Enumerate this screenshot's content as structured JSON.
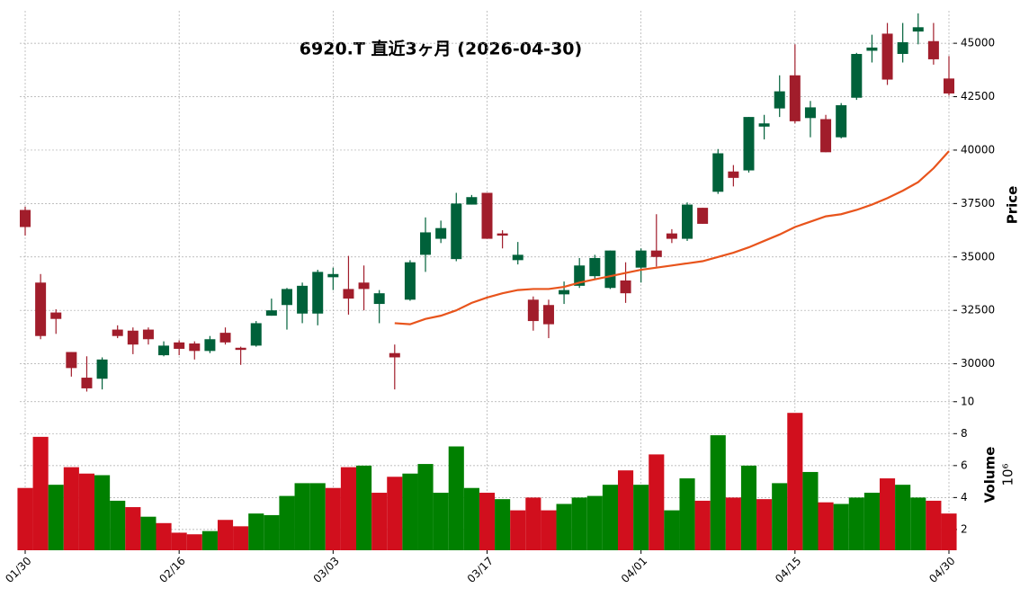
{
  "chart_data": {
    "type": "candlestick",
    "title": "6920.T 直近3ヶ月 (2026-04-30)",
    "categories": [
      "01/30",
      null,
      null,
      null,
      null,
      null,
      null,
      null,
      null,
      null,
      "02/16",
      null,
      null,
      null,
      null,
      null,
      null,
      null,
      null,
      null,
      "03/03",
      null,
      null,
      null,
      null,
      null,
      null,
      null,
      null,
      null,
      "03/17",
      null,
      null,
      null,
      null,
      null,
      null,
      null,
      null,
      null,
      "04/01",
      null,
      null,
      null,
      null,
      null,
      null,
      null,
      null,
      null,
      "04/15",
      null,
      null,
      null,
      null,
      null,
      null,
      null,
      null,
      null,
      "04/30"
    ],
    "open": [
      37200,
      33800,
      32400,
      30550,
      29350,
      29300,
      31600,
      31550,
      31600,
      30400,
      31000,
      30950,
      30600,
      31450,
      30750,
      30850,
      32250,
      32750,
      32350,
      32350,
      34050,
      33500,
      33800,
      32800,
      30500,
      33000,
      35100,
      35850,
      34900,
      37450,
      38000,
      36100,
      34850,
      33000,
      32750,
      33250,
      33650,
      34100,
      33550,
      33900,
      34500,
      35300,
      36100,
      35850,
      37300,
      38050,
      39000,
      39050,
      41100,
      41950,
      43500,
      41500,
      41450,
      40600,
      42450,
      44650,
      45450,
      44500,
      45550,
      45100,
      43350
    ],
    "high": [
      37350,
      34200,
      32550,
      30550,
      30350,
      30300,
      31800,
      31700,
      31700,
      31050,
      31100,
      31050,
      31300,
      31700,
      30800,
      32000,
      33050,
      33550,
      33800,
      34400,
      34500,
      35050,
      34600,
      33450,
      30900,
      34850,
      36850,
      36700,
      38000,
      37900,
      38000,
      36250,
      35700,
      33150,
      33000,
      33850,
      34950,
      35100,
      35300,
      34750,
      35400,
      37000,
      36300,
      37550,
      37300,
      40050,
      39300,
      41550,
      41650,
      43500,
      44950,
      42300,
      41650,
      42200,
      44550,
      45400,
      45950,
      45950,
      46400,
      45950,
      44400
    ],
    "low": [
      36000,
      31150,
      31400,
      29400,
      28700,
      28800,
      31200,
      30450,
      30900,
      30350,
      30400,
      30200,
      30500,
      30900,
      29950,
      30800,
      32250,
      31600,
      31900,
      31800,
      33450,
      32300,
      32500,
      31900,
      28800,
      32950,
      34300,
      35650,
      34800,
      37450,
      35850,
      35400,
      34650,
      31550,
      31200,
      32800,
      33550,
      33950,
      33500,
      32850,
      33800,
      34550,
      35650,
      35750,
      36550,
      37950,
      38300,
      38950,
      40500,
      41550,
      41250,
      40600,
      39900,
      40550,
      42350,
      44100,
      43050,
      44100,
      44950,
      44000,
      42550
    ],
    "close": [
      36400,
      31300,
      32100,
      29800,
      28850,
      30200,
      31300,
      30900,
      31150,
      30850,
      30700,
      30600,
      31150,
      31000,
      30650,
      31900,
      32500,
      33500,
      33650,
      34300,
      34200,
      33050,
      33500,
      33300,
      30300,
      34750,
      36150,
      36350,
      37500,
      37800,
      35850,
      36000,
      35100,
      32000,
      31850,
      33450,
      34600,
      34950,
      35300,
      33300,
      35300,
      35000,
      35850,
      37450,
      36550,
      39850,
      38700,
      41550,
      41250,
      42750,
      41350,
      42000,
      39900,
      42100,
      44500,
      44800,
      43300,
      45050,
      45750,
      44250,
      42650
    ],
    "up_color": "#00613a",
    "down_color": "#a11d2b",
    "moving_average": {
      "color": "#e8541c",
      "values": [
        null,
        null,
        null,
        null,
        null,
        null,
        null,
        null,
        null,
        null,
        null,
        null,
        null,
        null,
        null,
        null,
        null,
        null,
        null,
        null,
        null,
        null,
        null,
        null,
        31900,
        31850,
        32100,
        32250,
        32500,
        32850,
        33100,
        33300,
        33450,
        33500,
        33500,
        33600,
        33800,
        33950,
        34100,
        34250,
        34400,
        34500,
        34600,
        34700,
        34800,
        35000,
        35200,
        35450,
        35750,
        36050,
        36400,
        36650,
        36900,
        37000,
        37200,
        37450,
        37750,
        38100,
        38500,
        39150,
        39950
      ]
    },
    "ylim": [
      28300,
      46520
    ],
    "yticks": [
      30000,
      32500,
      35000,
      37500,
      40000,
      42500,
      45000
    ],
    "ylabel": "Price",
    "grid": true,
    "volume": {
      "values": [
        4.6,
        7.8,
        4.8,
        5.9,
        5.5,
        5.4,
        3.8,
        3.4,
        2.8,
        2.4,
        1.8,
        1.7,
        1.9,
        2.6,
        2.2,
        3.0,
        2.9,
        4.1,
        4.9,
        4.9,
        4.6,
        5.9,
        6.0,
        4.3,
        5.3,
        5.5,
        6.1,
        4.3,
        7.2,
        4.6,
        4.3,
        3.9,
        3.2,
        4.0,
        3.2,
        3.6,
        4.0,
        4.1,
        4.8,
        5.7,
        4.8,
        6.7,
        3.2,
        5.2,
        3.8,
        7.9,
        4.0,
        6.0,
        3.9,
        4.9,
        9.3,
        5.6,
        3.7,
        3.6,
        4.0,
        4.3,
        5.2,
        4.8,
        4.0,
        3.8,
        3.0
      ],
      "up_color": "#008000",
      "down_color": "#d10f1d",
      "ylim": [
        0.7,
        10.1
      ],
      "yticks": [
        2,
        4,
        6,
        8,
        10
      ],
      "ylabel": "Volume",
      "offset_label": "10⁶"
    }
  }
}
